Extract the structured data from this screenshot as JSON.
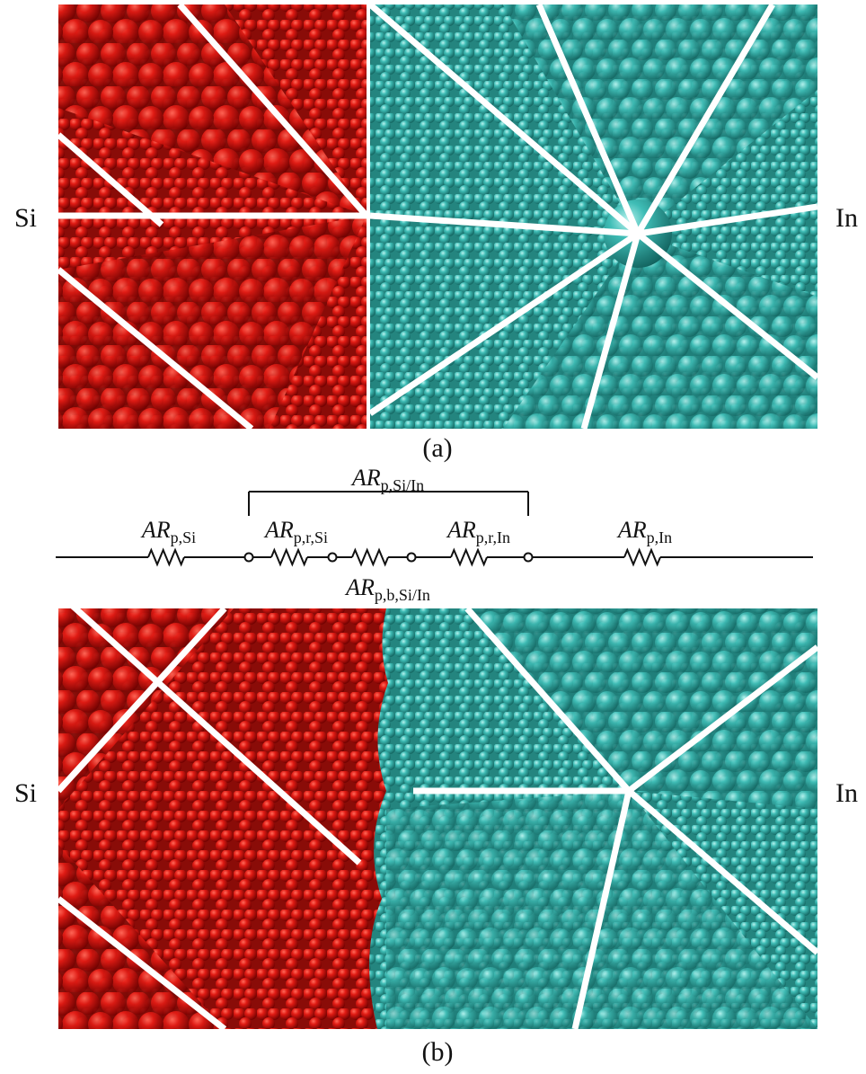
{
  "panel_a": {
    "left_label": "Si",
    "right_label": "In",
    "caption": "(a)"
  },
  "circuit": {
    "bracket_label": {
      "symbol": "AR",
      "subscript": "p,Si/In"
    },
    "resistors": [
      {
        "symbol": "AR",
        "subscript": "p,Si"
      },
      {
        "symbol": "AR",
        "subscript": "p,r,Si"
      },
      {
        "symbol": "AR",
        "subscript": "p,b,Si/In"
      },
      {
        "symbol": "AR",
        "subscript": "p,r,In"
      },
      {
        "symbol": "AR",
        "subscript": "p,In"
      }
    ]
  },
  "panel_b": {
    "left_label": "Si",
    "right_label": "In",
    "caption": "(b)"
  }
}
